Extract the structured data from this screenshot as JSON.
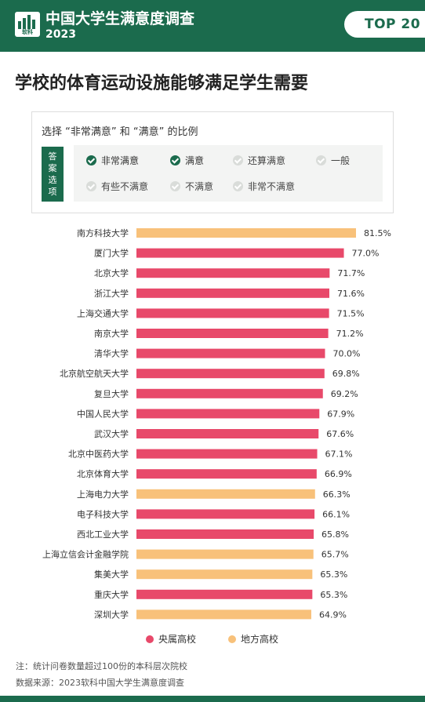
{
  "header": {
    "logo_text": "软科",
    "title": "中国大学生满意度调查",
    "year": "2023",
    "badge": "TOP 20"
  },
  "page_title": "学校的体育运动设施能够满足学生需要",
  "legend_box": {
    "title": "选择 “非常满意” 和 “满意” 的比例",
    "answer_tag": "答案选项",
    "options": [
      {
        "label": "非常满意",
        "checked": true
      },
      {
        "label": "满意",
        "checked": true
      },
      {
        "label": "还算满意",
        "checked": false
      },
      {
        "label": "一般",
        "checked": false
      },
      {
        "label": "有些不满意",
        "checked": false
      },
      {
        "label": "不满意",
        "checked": false
      },
      {
        "label": "非常不满意",
        "checked": false
      }
    ]
  },
  "colors": {
    "brand_green": "#1b6b4d",
    "central": "#e8496a",
    "local": "#f8c17a"
  },
  "chart_data": {
    "type": "bar",
    "orientation": "horizontal",
    "unit": "%",
    "categories": [
      "南方科技大学",
      "厦门大学",
      "北京大学",
      "浙江大学",
      "上海交通大学",
      "南京大学",
      "清华大学",
      "北京航空航天大学",
      "复旦大学",
      "中国人民大学",
      "武汉大学",
      "北京中医药大学",
      "北京体育大学",
      "上海电力大学",
      "电子科技大学",
      "西北工业大学",
      "上海立信会计金融学院",
      "集美大学",
      "重庆大学",
      "深圳大学"
    ],
    "values": [
      81.5,
      77.0,
      71.7,
      71.6,
      71.5,
      71.2,
      70.0,
      69.8,
      69.2,
      67.9,
      67.6,
      67.1,
      66.9,
      66.3,
      66.1,
      65.8,
      65.7,
      65.3,
      65.3,
      64.9
    ],
    "value_labels": [
      "81.5%",
      "77.0%",
      "71.7%",
      "71.6%",
      "71.5%",
      "71.2%",
      "70.0%",
      "69.8%",
      "69.2%",
      "67.9%",
      "67.6%",
      "67.1%",
      "66.9%",
      "66.3%",
      "66.1%",
      "65.8%",
      "65.7%",
      "65.3%",
      "65.3%",
      "64.9%"
    ],
    "groups": [
      "地方高校",
      "央属高校",
      "央属高校",
      "央属高校",
      "央属高校",
      "央属高校",
      "央属高校",
      "央属高校",
      "央属高校",
      "央属高校",
      "央属高校",
      "央属高校",
      "央属高校",
      "地方高校",
      "央属高校",
      "央属高校",
      "地方高校",
      "地方高校",
      "央属高校",
      "地方高校"
    ],
    "legend": [
      {
        "name": "央属高校",
        "color": "#e8496a"
      },
      {
        "name": "地方高校",
        "color": "#f8c17a"
      }
    ]
  },
  "notes": {
    "note": "注：统计问卷数量超过100份的本科层次院校",
    "source": "数据来源：2023软科中国大学生满意度调查"
  }
}
